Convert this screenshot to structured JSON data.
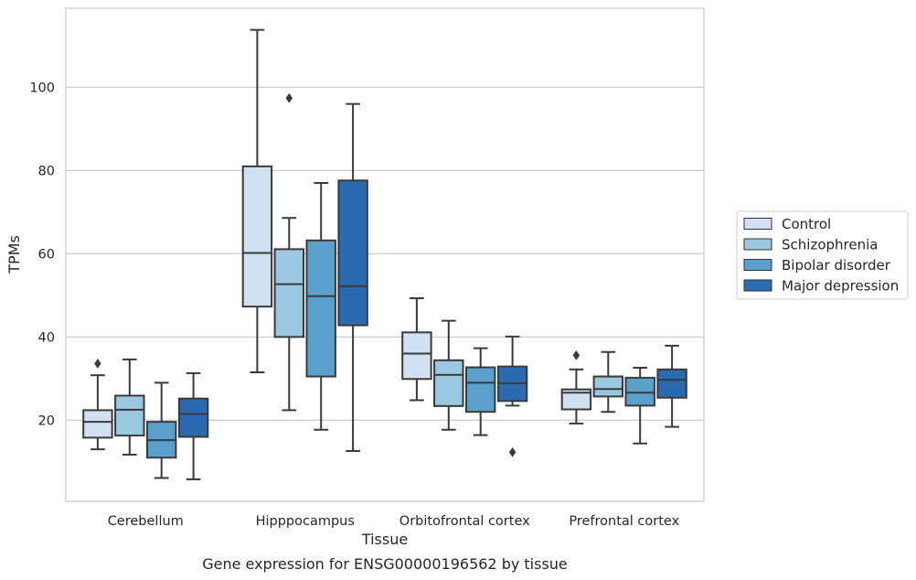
{
  "chart_data": {
    "type": "box",
    "title": "",
    "xlabel": "Tissue",
    "ylabel": "TPMs",
    "caption": "Gene expression for ENSG00000196562 by tissue",
    "categories": [
      "Cerebellum",
      "Hipppocampus",
      "Orbitofrontal cortex",
      "Prefrontal cortex"
    ],
    "yticks": [
      20,
      40,
      60,
      80,
      100
    ],
    "ylim": [
      0.5,
      119
    ],
    "grid": "y",
    "legend_placement": "right",
    "series": [
      {
        "name": "Control",
        "color": "#d0e1f2",
        "boxes": [
          {
            "whislo": 13,
            "q1": 15.8,
            "med": 19.6,
            "q3": 22.4,
            "whishi": 30.8,
            "fliers": [
              33.6
            ]
          },
          {
            "whislo": 31.5,
            "q1": 47.3,
            "med": 60.2,
            "q3": 81.0,
            "whishi": 113.8,
            "fliers": []
          },
          {
            "whislo": 24.8,
            "q1": 29.9,
            "med": 36.0,
            "q3": 41.1,
            "whishi": 49.3,
            "fliers": []
          },
          {
            "whislo": 19.2,
            "q1": 22.6,
            "med": 26.6,
            "q3": 27.4,
            "whishi": 32.2,
            "fliers": [
              35.6
            ]
          }
        ]
      },
      {
        "name": "Schizophrenia",
        "color": "#9ac8e0",
        "boxes": [
          {
            "whislo": 11.7,
            "q1": 16.3,
            "med": 22.5,
            "q3": 25.9,
            "whishi": 34.6,
            "fliers": []
          },
          {
            "whislo": 22.4,
            "q1": 40.0,
            "med": 52.7,
            "q3": 61.1,
            "whishi": 68.6,
            "fliers": [
              97.4
            ]
          },
          {
            "whislo": 17.7,
            "q1": 23.4,
            "med": 30.9,
            "q3": 34.4,
            "whishi": 43.9,
            "fliers": []
          },
          {
            "whislo": 22.0,
            "q1": 25.7,
            "med": 27.5,
            "q3": 30.5,
            "whishi": 36.4,
            "fliers": []
          }
        ]
      },
      {
        "name": "Bipolar disorder",
        "color": "#5aa0cd",
        "boxes": [
          {
            "whislo": 6.1,
            "q1": 11.0,
            "med": 15.2,
            "q3": 19.6,
            "whishi": 29.0,
            "fliers": []
          },
          {
            "whislo": 17.7,
            "q1": 30.5,
            "med": 49.8,
            "q3": 63.2,
            "whishi": 77.0,
            "fliers": []
          },
          {
            "whislo": 16.4,
            "q1": 22.0,
            "med": 29.0,
            "q3": 32.7,
            "whishi": 37.3,
            "fliers": []
          },
          {
            "whislo": 14.4,
            "q1": 23.5,
            "med": 26.6,
            "q3": 30.2,
            "whishi": 32.6,
            "fliers": []
          }
        ]
      },
      {
        "name": "Major depression",
        "color": "#2a6ab0",
        "boxes": [
          {
            "whislo": 5.8,
            "q1": 16.0,
            "med": 21.5,
            "q3": 25.2,
            "whishi": 31.3,
            "fliers": []
          },
          {
            "whislo": 12.6,
            "q1": 42.8,
            "med": 52.2,
            "q3": 77.6,
            "whishi": 96.0,
            "fliers": []
          },
          {
            "whislo": 23.5,
            "q1": 24.6,
            "med": 28.9,
            "q3": 32.9,
            "whishi": 40.1,
            "fliers": [
              12.3
            ]
          },
          {
            "whislo": 18.4,
            "q1": 25.4,
            "med": 29.7,
            "q3": 32.2,
            "whishi": 37.9,
            "fliers": []
          }
        ]
      }
    ]
  }
}
